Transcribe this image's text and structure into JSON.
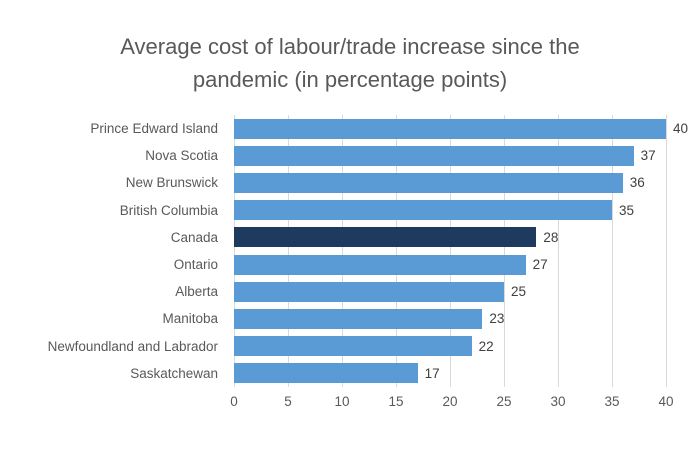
{
  "chart_data": {
    "type": "bar",
    "orientation": "horizontal",
    "title": "Average cost of labour/trade increase since the pandemic (in percentage points)",
    "categories": [
      "Prince Edward Island",
      "Nova Scotia",
      "New Brunswick",
      "British Columbia",
      "Canada",
      "Ontario",
      "Alberta",
      "Manitoba",
      "Newfoundland and Labrador",
      "Saskatchewan"
    ],
    "values": [
      40,
      37,
      36,
      35,
      28,
      27,
      25,
      23,
      22,
      17
    ],
    "highlight_category": "Canada",
    "xlabel": "",
    "ylabel": "",
    "xlim": [
      0,
      40
    ],
    "x_ticks": [
      0,
      5,
      10,
      15,
      20,
      25,
      30,
      35,
      40
    ],
    "grid": true,
    "legend": false,
    "colors": {
      "bar": "#5B9BD5",
      "highlight_bar": "#1E3A5F",
      "gridline": "#D9D9D9",
      "title_text": "#595959",
      "axis_text": "#595959",
      "value_text": "#404040"
    }
  }
}
